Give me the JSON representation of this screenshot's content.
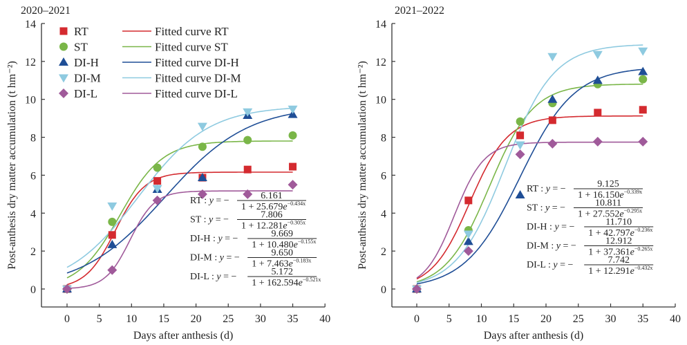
{
  "chart_data": [
    {
      "type": "scatter",
      "title": "2020–2021",
      "xlabel": "Days after anthesis (d)",
      "ylabel": "Post-anthesis dry matter accumulation (t hm⁻²)",
      "xlim": [
        -4,
        40
      ],
      "ylim": [
        -0.95,
        14
      ],
      "xticks": [
        0,
        5,
        10,
        15,
        20,
        25,
        30,
        35,
        40
      ],
      "yticks": [
        0,
        2,
        4,
        6,
        8,
        10,
        12,
        14
      ],
      "grid": false,
      "legend_position": "top-left",
      "x": [
        0,
        7,
        14,
        21,
        28,
        35
      ],
      "series": [
        {
          "name": "RT",
          "fit_name": "Fitted curve RT",
          "color": "#d42a2f",
          "marker": "square",
          "values": [
            0,
            2.85,
            5.7,
            5.87,
            6.3,
            6.45
          ],
          "fit": {
            "a": 6.161,
            "b": 25.679,
            "k": 0.434
          }
        },
        {
          "name": "ST",
          "fit_name": "Fitted curve ST",
          "color": "#7ab648",
          "marker": "circle",
          "values": [
            0,
            3.54,
            6.4,
            7.5,
            7.85,
            8.1
          ],
          "fit": {
            "a": 7.806,
            "b": 12.281,
            "k": 0.305
          }
        },
        {
          "name": "DI-H",
          "fit_name": "Fitted curve DI-H",
          "color": "#1f4e96",
          "marker": "triangle-up",
          "values": [
            0,
            2.34,
            5.25,
            5.87,
            9.15,
            9.2
          ],
          "fit": {
            "a": 9.669,
            "b": 10.48,
            "k": 0.155
          }
        },
        {
          "name": "DI-M",
          "fit_name": "Fitted curve DI-M",
          "color": "#8ecae0",
          "marker": "triangle-down",
          "values": [
            0,
            4.38,
            5.3,
            8.58,
            9.34,
            9.49
          ],
          "fit": {
            "a": 9.65,
            "b": 7.463,
            "k": 0.183
          }
        },
        {
          "name": "DI-L",
          "fit_name": "Fitted curve DI-L",
          "color": "#a05a9a",
          "marker": "diamond",
          "values": [
            0,
            1.0,
            4.67,
            5.0,
            5.0,
            5.5
          ],
          "fit": {
            "a": 5.172,
            "b": 162.594,
            "k": 0.521
          }
        }
      ],
      "equations": [
        {
          "label": "RT : ",
          "num": "6.161",
          "den": "1 + 25.679",
          "exp": "−0.434x"
        },
        {
          "label": "ST : ",
          "num": "7.806",
          "den": "1 + 12.281",
          "exp": "−0.305x"
        },
        {
          "label": "DI-H : ",
          "num": "9.669",
          "den": "1 + 10.480",
          "exp": "−0.155x"
        },
        {
          "label": "DI-M : ",
          "num": "9.650",
          "den": "1 + 7.463",
          "exp": "−0.183x"
        },
        {
          "label": "DI-L : ",
          "num": "5.172",
          "den": "1 + 162.594",
          "exp": "−0.521x"
        }
      ]
    },
    {
      "type": "scatter",
      "title": "2021–2022",
      "xlabel": "Days after anthesis (d)",
      "ylabel": "Post-anthesis dry matter accumulation (t hm⁻²)",
      "xlim": [
        -4,
        40
      ],
      "ylim": [
        -0.95,
        14
      ],
      "xticks": [
        0,
        5,
        10,
        15,
        20,
        25,
        30,
        35,
        40
      ],
      "yticks": [
        0,
        2,
        4,
        6,
        8,
        10,
        12,
        14
      ],
      "grid": false,
      "x": [
        0,
        8,
        16,
        21,
        28,
        35
      ],
      "series": [
        {
          "name": "RT",
          "color": "#d42a2f",
          "marker": "square",
          "values": [
            0,
            4.67,
            8.1,
            8.9,
            9.3,
            9.45
          ],
          "fit": {
            "a": 9.125,
            "b": 16.15,
            "k": 0.339
          }
        },
        {
          "name": "ST",
          "color": "#7ab648",
          "marker": "circle",
          "values": [
            0,
            3.1,
            8.83,
            9.8,
            10.8,
            11.06
          ],
          "fit": {
            "a": 10.811,
            "b": 27.552,
            "k": 0.295
          }
        },
        {
          "name": "DI-H",
          "color": "#1f4e96",
          "marker": "triangle-up",
          "values": [
            0,
            2.5,
            4.96,
            10.0,
            11.0,
            11.46
          ],
          "fit": {
            "a": 11.71,
            "b": 42.797,
            "k": 0.236
          }
        },
        {
          "name": "DI-M",
          "color": "#8ecae0",
          "marker": "triangle-down",
          "values": [
            0,
            2.9,
            7.6,
            12.26,
            12.37,
            12.55
          ],
          "fit": {
            "a": 12.912,
            "b": 37.361,
            "k": 0.265
          }
        },
        {
          "name": "DI-L",
          "color": "#a05a9a",
          "marker": "diamond",
          "values": [
            0,
            2.0,
            7.1,
            7.66,
            7.77,
            7.77
          ],
          "fit": {
            "a": 7.742,
            "b": 12.291,
            "k": 0.432
          }
        }
      ],
      "equations": [
        {
          "label": "RT : ",
          "num": "9.125",
          "den": "1 + 16.150",
          "exp": "−0.339x"
        },
        {
          "label": "ST : ",
          "num": "10.811",
          "den": "1 + 27.552",
          "exp": "−0.295x"
        },
        {
          "label": "DI-H : ",
          "num": "11.710",
          "den": "1 + 42.797",
          "exp": "−0.236x"
        },
        {
          "label": "DI-M : ",
          "num": "12.912",
          "den": "1 + 37.361",
          "exp": "−0.265x"
        },
        {
          "label": "DI-L : ",
          "num": "7.742",
          "den": "1 + 12.291",
          "exp": "−0.432x"
        }
      ]
    }
  ]
}
